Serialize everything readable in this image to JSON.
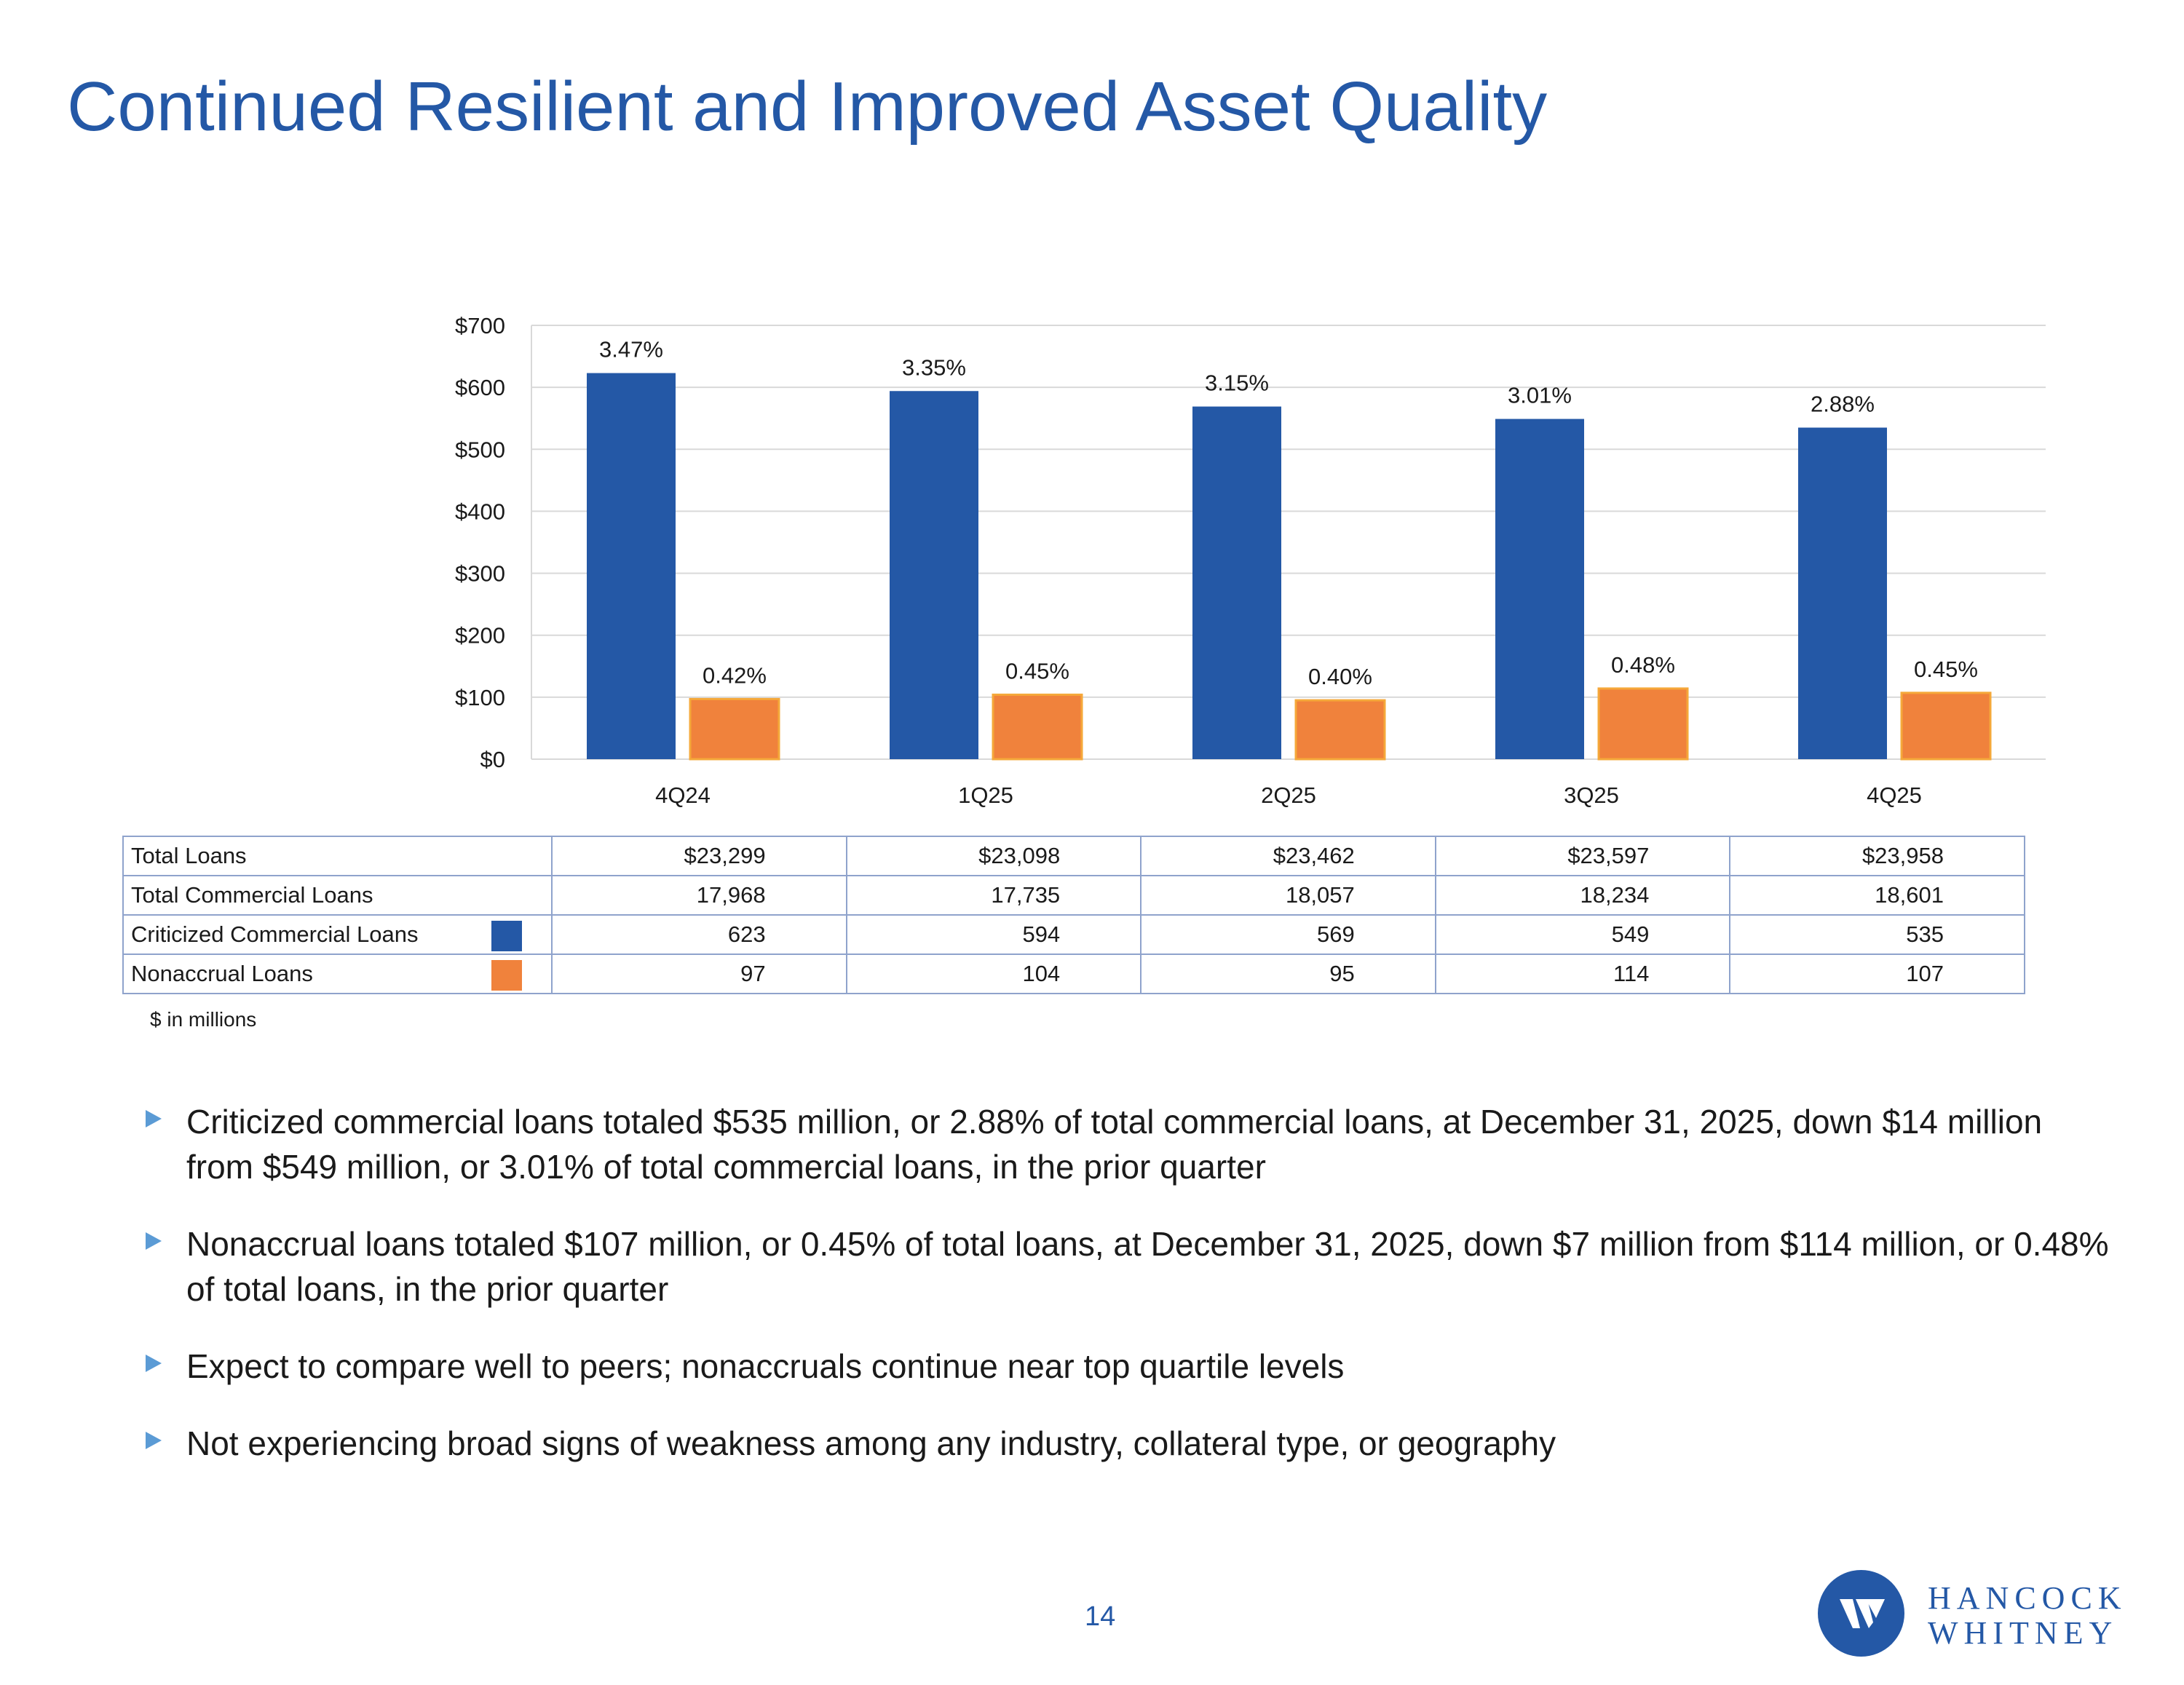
{
  "slide": {
    "title": "Continued Resilient and Improved Asset Quality",
    "page_number": "14",
    "footnote": "$ in millions",
    "logo": {
      "line1": "HANCOCK",
      "line2": "WHITNEY",
      "color": "#2458a6"
    }
  },
  "colors": {
    "criticized": "#2458a6",
    "nonaccrual": "#f0823c",
    "grid": "#d9d9d9"
  },
  "chart_data": {
    "type": "bar",
    "categories": [
      "4Q24",
      "1Q25",
      "2Q25",
      "3Q25",
      "4Q25"
    ],
    "series": [
      {
        "name": "Criticized Commercial Loans",
        "values": [
          623,
          594,
          569,
          549,
          535
        ],
        "labels": [
          "3.47%",
          "3.35%",
          "3.15%",
          "3.01%",
          "2.88%"
        ],
        "color": "#2458a6"
      },
      {
        "name": "Nonaccrual Loans",
        "values": [
          97,
          104,
          95,
          114,
          107
        ],
        "labels": [
          "0.42%",
          "0.45%",
          "0.40%",
          "0.48%",
          "0.45%"
        ],
        "color": "#f0823c"
      }
    ],
    "ylim": [
      0,
      700
    ],
    "yticks": [
      0,
      100,
      200,
      300,
      400,
      500,
      600,
      700
    ],
    "ytick_labels": [
      "$0",
      "$100",
      "$200",
      "$300",
      "$400",
      "$500",
      "$600",
      "$700"
    ],
    "grid": true,
    "title": "",
    "xlabel": "",
    "ylabel": ""
  },
  "table": {
    "rows": [
      {
        "label": "Total Loans",
        "values": [
          "$23,299",
          "$23,098",
          "$23,462",
          "$23,597",
          "$23,958"
        ]
      },
      {
        "label": "Total Commercial Loans",
        "values": [
          "17,968",
          "17,735",
          "18,057",
          "18,234",
          "18,601"
        ]
      },
      {
        "label": "Criticized Commercial Loans",
        "values": [
          "623",
          "594",
          "569",
          "549",
          "535"
        ],
        "swatch": "#2458a6"
      },
      {
        "label": "Nonaccrual Loans",
        "values": [
          "97",
          "104",
          "95",
          "114",
          "107"
        ],
        "swatch": "#f0823c"
      }
    ]
  },
  "bullets": [
    "Criticized commercial loans totaled $535 million, or 2.88% of total commercial loans, at December 31, 2025, down $14 million from $549 million, or 3.01% of total commercial loans, in the prior quarter",
    "Nonaccrual loans totaled $107 million, or 0.45% of total loans, at December 31, 2025, down $7 million from $114 million, or 0.48% of total loans, in the prior quarter",
    "Expect to compare well to peers; nonaccruals continue near top quartile levels",
    "Not experiencing broad signs of weakness among any industry, collateral type, or geography"
  ]
}
